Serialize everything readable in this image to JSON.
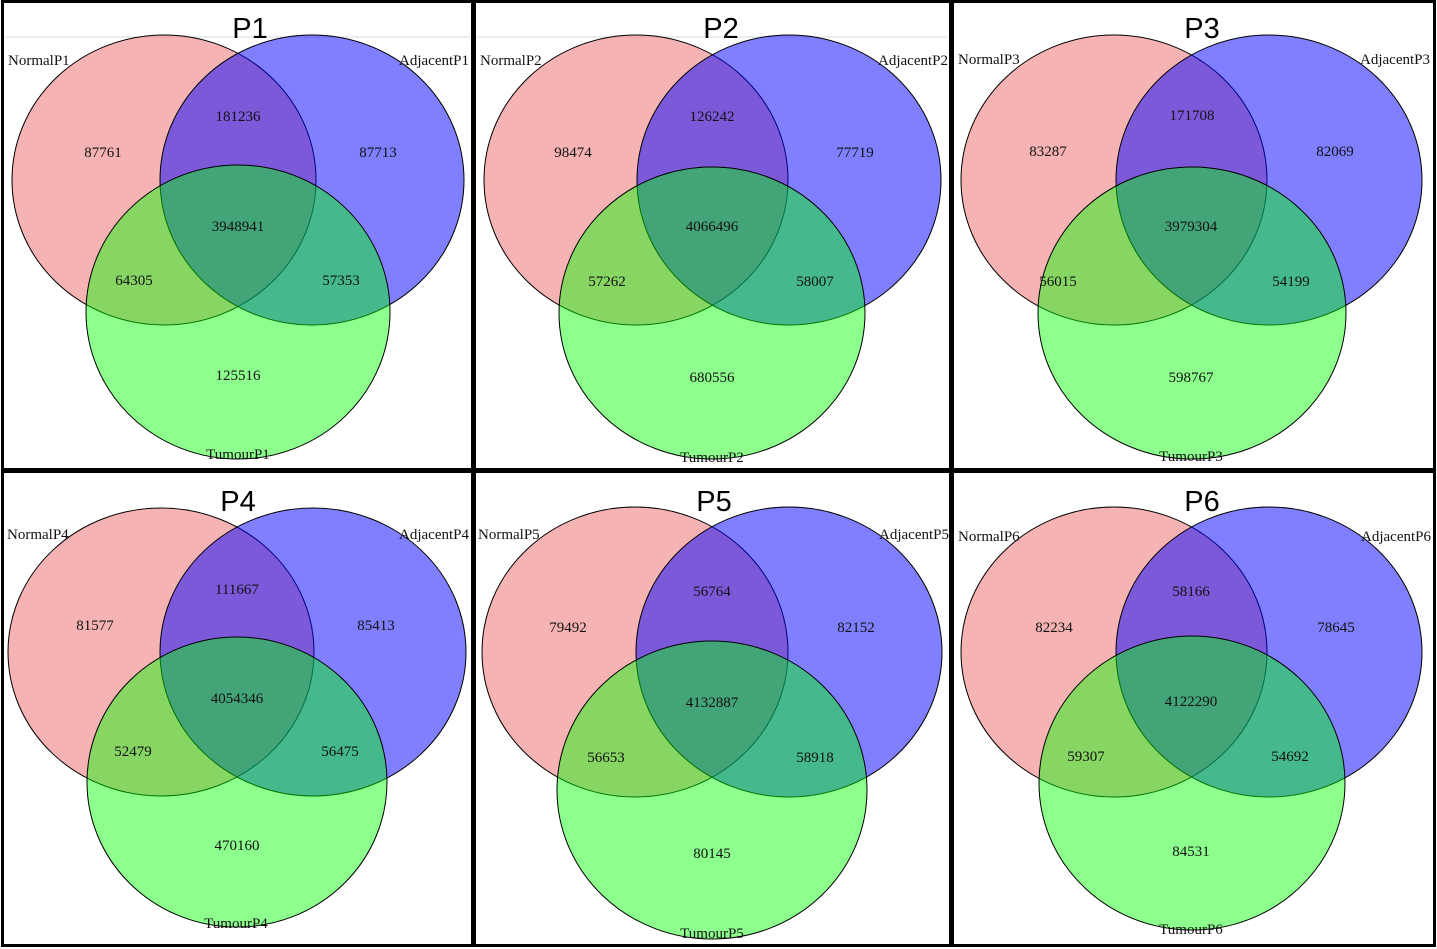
{
  "colors": {
    "normal": "#f08080",
    "adjacent": "#0000ff",
    "tumour": "#00ff00",
    "outline": "#000000"
  },
  "panels": [
    {
      "title": "P1",
      "labels": {
        "normal": "NormalP1",
        "adjacent": "AdjacentP1",
        "tumour": "TumourP1"
      },
      "counts": {
        "normal_only": "87761",
        "adjacent_only": "87713",
        "tumour_only": "125516",
        "normal_adjacent": "181236",
        "normal_tumour": "64305",
        "adjacent_tumour": "57353",
        "all": "3948941"
      }
    },
    {
      "title": "P2",
      "labels": {
        "normal": "NormalP2",
        "adjacent": "AdjacentP2",
        "tumour": "TumourP2"
      },
      "counts": {
        "normal_only": "98474",
        "adjacent_only": "77719",
        "tumour_only": "680556",
        "normal_adjacent": "126242",
        "normal_tumour": "57262",
        "adjacent_tumour": "58007",
        "all": "4066496"
      }
    },
    {
      "title": "P3",
      "labels": {
        "normal": "NormalP3",
        "adjacent": "AdjacentP3",
        "tumour": "TumourP3"
      },
      "counts": {
        "normal_only": "83287",
        "adjacent_only": "82069",
        "tumour_only": "598767",
        "normal_adjacent": "171708",
        "normal_tumour": "56015",
        "adjacent_tumour": "54199",
        "all": "3979304"
      }
    },
    {
      "title": "P4",
      "labels": {
        "normal": "NormalP4",
        "adjacent": "AdjacentP4",
        "tumour": "TumourP4"
      },
      "counts": {
        "normal_only": "81577",
        "adjacent_only": "85413",
        "tumour_only": "470160",
        "normal_adjacent": "111667",
        "normal_tumour": "52479",
        "adjacent_tumour": "56475",
        "all": "4054346"
      }
    },
    {
      "title": "P5",
      "labels": {
        "normal": "NormalP5",
        "adjacent": "AdjacentP5",
        "tumour": "TumourP5"
      },
      "counts": {
        "normal_only": "79492",
        "adjacent_only": "82152",
        "tumour_only": "80145",
        "normal_adjacent": "56764",
        "normal_tumour": "56653",
        "adjacent_tumour": "58918",
        "all": "4132887"
      }
    },
    {
      "title": "P6",
      "labels": {
        "normal": "NormalP6",
        "adjacent": "AdjacentP6",
        "tumour": "TumourP6"
      },
      "counts": {
        "normal_only": "82234",
        "adjacent_only": "78645",
        "tumour_only": "84531",
        "normal_adjacent": "58166",
        "normal_tumour": "59307",
        "adjacent_tumour": "54692",
        "all": "4122290"
      }
    }
  ]
}
